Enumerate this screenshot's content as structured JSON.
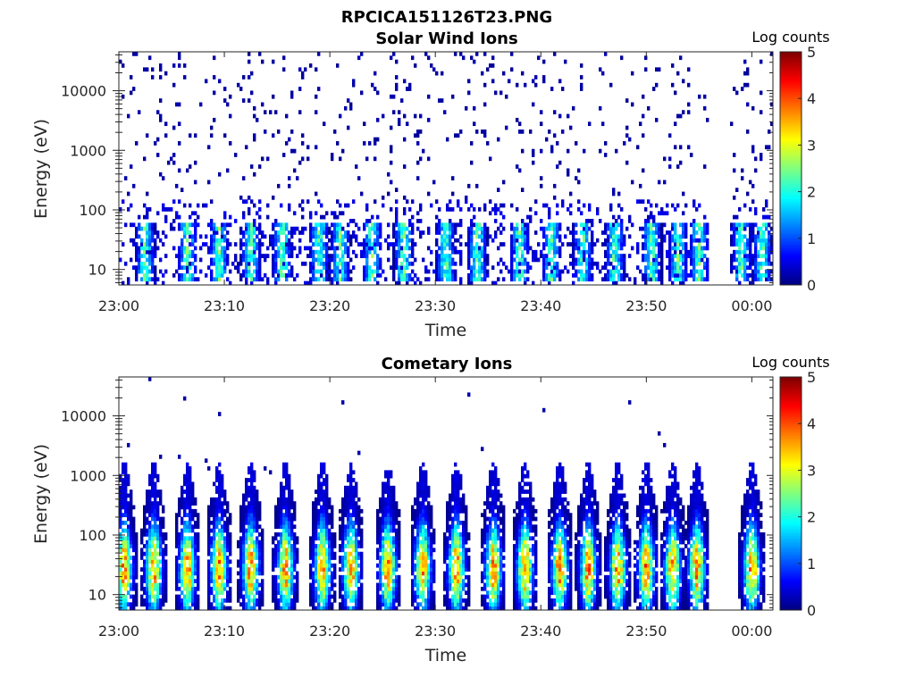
{
  "figure_title": "RPCICA151126T23.PNG",
  "colormap": "jet",
  "colormap_colors": [
    "#00007f",
    "#0000ff",
    "#007fff",
    "#00ffff",
    "#7fff7f",
    "#ffff00",
    "#ff7f00",
    "#ff0000",
    "#7f0000"
  ],
  "chart_data": [
    {
      "type": "heatmap",
      "title": "Solar Wind Ions",
      "xlabel": "Time",
      "ylabel": "Energy (eV)",
      "x_ticks": [
        "23:00",
        "23:10",
        "23:20",
        "23:30",
        "23:40",
        "23:50",
        "00:00"
      ],
      "x_range_minutes": [
        0,
        62
      ],
      "y_scale": "log",
      "y_ticks": [
        "10",
        "100",
        "1000",
        "10000"
      ],
      "y_range_eV": [
        5.5,
        45000
      ],
      "data_gap_minutes": [
        56,
        58
      ],
      "colorbar": {
        "label": "Log counts",
        "ticks": [
          "0",
          "1",
          "2",
          "3",
          "4",
          "5"
        ],
        "range": [
          0,
          5
        ]
      },
      "low_energy_bursts_minutes": [
        2.5,
        6.5,
        9.5,
        12.5,
        15.5,
        19.0,
        21.0,
        24.0,
        27.0,
        31.0,
        34.0,
        38.0,
        41.0,
        44.0,
        47.0,
        50.5,
        53.0,
        55.0,
        59.0,
        61.0
      ],
      "peak_log_counts": 2.9,
      "background_log_counts": 0.1
    },
    {
      "type": "heatmap",
      "title": "Cometary Ions",
      "xlabel": "Time",
      "ylabel": "Energy (eV)",
      "x_ticks": [
        "23:00",
        "23:10",
        "23:20",
        "23:30",
        "23:40",
        "23:50",
        "00:00"
      ],
      "x_range_minutes": [
        0,
        62
      ],
      "y_scale": "log",
      "y_ticks": [
        "10",
        "100",
        "1000",
        "10000"
      ],
      "y_range_eV": [
        5.5,
        45000
      ],
      "data_gap_minutes": [
        56,
        58
      ],
      "colorbar": {
        "label": "Log counts",
        "ticks": [
          "0",
          "1",
          "2",
          "3",
          "4",
          "5"
        ],
        "range": [
          0,
          5
        ]
      },
      "bursts_minutes": [
        0.5,
        3.3,
        6.5,
        9.5,
        12.5,
        15.8,
        19.3,
        22.0,
        25.5,
        28.8,
        32.0,
        35.5,
        38.5,
        41.8,
        44.5,
        47.3,
        50.0,
        52.5,
        54.8,
        60.0
      ],
      "peak_log_counts": 4.0,
      "peak_energy_eV": 28
    }
  ]
}
